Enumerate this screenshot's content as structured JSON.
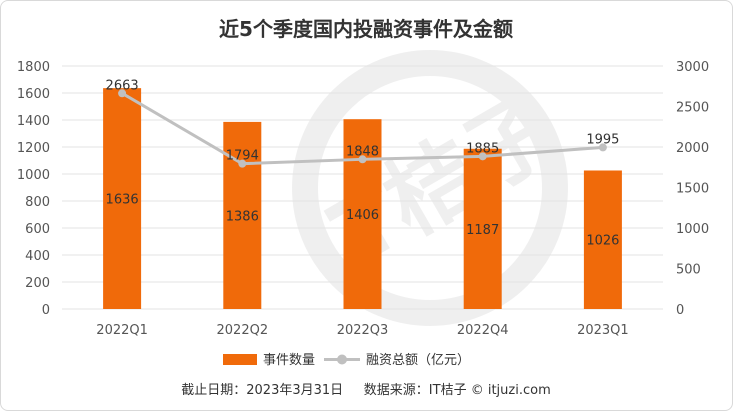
{
  "title": "近5个季度国内投融资事件及金额",
  "footer": "截止日期：2023年3月31日     数据来源：IT桔子 © itjuzi.com",
  "watermark": "IT桔子",
  "chart_data": {
    "type": "bar",
    "categories": [
      "2022Q1",
      "2022Q2",
      "2022Q3",
      "2022Q4",
      "2023Q1"
    ],
    "series": [
      {
        "name": "事件数量",
        "type": "bar",
        "axis": "left",
        "values": [
          1636,
          1386,
          1406,
          1187,
          1026
        ],
        "color": "#f06a0a"
      },
      {
        "name": "融资总额（亿元）",
        "type": "line",
        "axis": "right",
        "values": [
          2663,
          1794,
          1848,
          1885,
          1995
        ],
        "color": "#c0c0c0"
      }
    ],
    "y_left": {
      "min": 0,
      "max": 1800,
      "ticks": [
        0,
        200,
        400,
        600,
        800,
        1000,
        1200,
        1400,
        1600,
        1800
      ]
    },
    "y_right": {
      "min": 0,
      "max": 3000,
      "ticks": [
        0,
        500,
        1000,
        1500,
        2000,
        2500,
        3000
      ]
    },
    "grid": true,
    "legend": "bottom-center"
  }
}
